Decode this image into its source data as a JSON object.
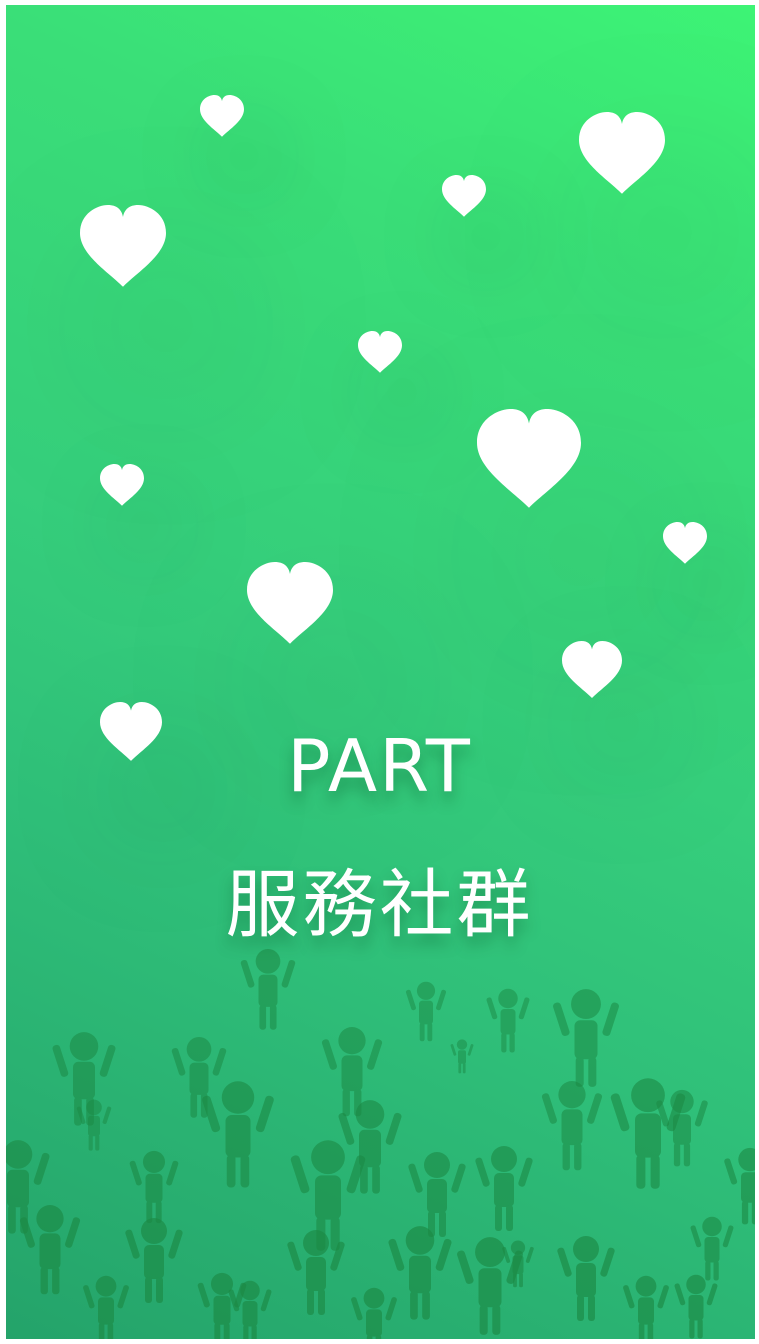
{
  "title": {
    "part_label": "PART",
    "subtitle": "服務社群"
  },
  "colors": {
    "gradient_top": "#3df475",
    "gradient_bottom": "#24a36a",
    "heart": "#ffffff",
    "crowd": "#1c8a45"
  },
  "decorations": {
    "hearts": "heart-icon",
    "crowd": "person-silhouette-icon"
  }
}
